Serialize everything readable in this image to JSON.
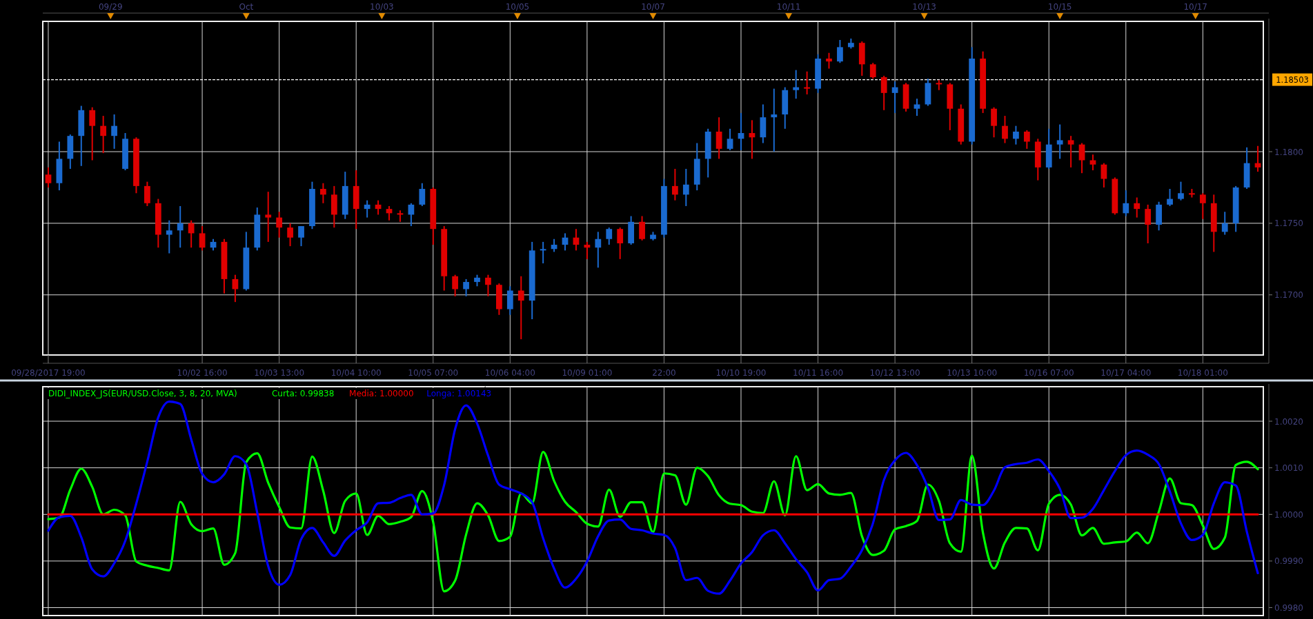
{
  "chart_data": [
    {
      "type": "candlestick",
      "categories": [
        "09/28/2017 19:00",
        null,
        null,
        null,
        null,
        null,
        null,
        null,
        null,
        null,
        null,
        null,
        null,
        null,
        "10/02 16:00",
        null,
        null,
        null,
        null,
        null,
        null,
        "10/03 13:00",
        null,
        null,
        null,
        null,
        null,
        null,
        "10/04 10:00",
        null,
        null,
        null,
        null,
        null,
        null,
        "10/05 07:00",
        null,
        null,
        null,
        null,
        null,
        null,
        "10/06 04:00",
        null,
        null,
        null,
        null,
        null,
        null,
        "10/09 01:00",
        null,
        null,
        null,
        null,
        null,
        null,
        "22:00",
        null,
        null,
        null,
        null,
        null,
        null,
        "10/10 19:00",
        null,
        null,
        null,
        null,
        null,
        null,
        "10/11 16:00",
        null,
        null,
        null,
        null,
        null,
        null,
        "10/12 13:00",
        null,
        null,
        null,
        null,
        null,
        null,
        "10/13 10:00",
        null,
        null,
        null,
        null,
        null,
        null,
        "10/16 07:00",
        null,
        null,
        null,
        null,
        null,
        null,
        "10/17 04:00",
        null,
        null,
        null,
        null,
        null,
        null,
        "10/18 01:00",
        null,
        null,
        null,
        null,
        null
      ],
      "ohlc": [
        [
          1.1784,
          1.1789,
          1.1775,
          1.1778
        ],
        [
          1.1778,
          1.1807,
          1.1773,
          1.1795
        ],
        [
          1.1795,
          1.1812,
          1.1788,
          1.1811
        ],
        [
          1.1811,
          1.1832,
          1.179,
          1.1829
        ],
        [
          1.1829,
          1.1831,
          1.1794,
          1.1818
        ],
        [
          1.1818,
          1.1825,
          1.1799,
          1.1811
        ],
        [
          1.1811,
          1.1826,
          1.1802,
          1.1818
        ],
        [
          1.1788,
          1.1813,
          1.1787,
          1.1809
        ],
        [
          1.1809,
          1.181,
          1.1771,
          1.1776
        ],
        [
          1.1776,
          1.1779,
          1.1762,
          1.1764
        ],
        [
          1.1764,
          1.1767,
          1.1733,
          1.1742
        ],
        [
          1.1742,
          1.1752,
          1.1729,
          1.1745
        ],
        [
          1.1745,
          1.1762,
          1.1733,
          1.175
        ],
        [
          1.175,
          1.1752,
          1.1733,
          1.1743
        ],
        [
          1.1743,
          1.1748,
          1.1731,
          1.1733
        ],
        [
          1.1733,
          1.1739,
          1.1731,
          1.1737
        ],
        [
          1.1737,
          1.1739,
          1.1701,
          1.1711
        ],
        [
          1.1711,
          1.1714,
          1.1695,
          1.1704
        ],
        [
          1.1704,
          1.1744,
          1.1703,
          1.1733
        ],
        [
          1.1733,
          1.1761,
          1.1731,
          1.1756
        ],
        [
          1.1756,
          1.1772,
          1.1737,
          1.1754
        ],
        [
          1.1754,
          1.1758,
          1.174,
          1.1747
        ],
        [
          1.1747,
          1.175,
          1.1734,
          1.174
        ],
        [
          1.174,
          1.1748,
          1.1734,
          1.1748
        ],
        [
          1.1748,
          1.1779,
          1.1746,
          1.1774
        ],
        [
          1.1774,
          1.1778,
          1.1764,
          1.177
        ],
        [
          1.177,
          1.1776,
          1.1747,
          1.1756
        ],
        [
          1.1756,
          1.1786,
          1.1753,
          1.1776
        ],
        [
          1.1776,
          1.1787,
          1.1746,
          1.176
        ],
        [
          1.176,
          1.1766,
          1.1754,
          1.1763
        ],
        [
          1.1763,
          1.1766,
          1.1756,
          1.176
        ],
        [
          1.176,
          1.1762,
          1.1752,
          1.1757
        ],
        [
          1.1757,
          1.1759,
          1.1751,
          1.1756
        ],
        [
          1.1756,
          1.1764,
          1.1748,
          1.1763
        ],
        [
          1.1763,
          1.1778,
          1.1762,
          1.1774
        ],
        [
          1.1774,
          1.1775,
          1.1735,
          1.1746
        ],
        [
          1.1746,
          1.1748,
          1.1703,
          1.1713
        ],
        [
          1.1713,
          1.1714,
          1.1699,
          1.1704
        ],
        [
          1.1704,
          1.1711,
          1.1699,
          1.1709
        ],
        [
          1.1709,
          1.1714,
          1.1706,
          1.1712
        ],
        [
          1.1712,
          1.1714,
          1.1699,
          1.1707
        ],
        [
          1.1707,
          1.1708,
          1.1686,
          1.169
        ],
        [
          1.169,
          1.1706,
          1.1686,
          1.1703
        ],
        [
          1.1703,
          1.1713,
          1.1669,
          1.1696
        ],
        [
          1.1696,
          1.1737,
          1.1683,
          1.1731
        ],
        [
          1.1731,
          1.1737,
          1.1722,
          1.1732
        ],
        [
          1.1732,
          1.1739,
          1.173,
          1.1735
        ],
        [
          1.1735,
          1.1743,
          1.1731,
          1.174
        ],
        [
          1.174,
          1.1746,
          1.1731,
          1.1735
        ],
        [
          1.1735,
          1.1737,
          1.1725,
          1.1733
        ],
        [
          1.1733,
          1.1744,
          1.1719,
          1.1739
        ],
        [
          1.1739,
          1.1747,
          1.1735,
          1.1746
        ],
        [
          1.1746,
          1.1747,
          1.1725,
          1.1736
        ],
        [
          1.1736,
          1.1755,
          1.1735,
          1.1751
        ],
        [
          1.1751,
          1.1755,
          1.1738,
          1.1739
        ],
        [
          1.1739,
          1.1744,
          1.1738,
          1.1742
        ],
        [
          1.1742,
          1.1781,
          1.174,
          1.1776
        ],
        [
          1.1776,
          1.1788,
          1.1766,
          1.177
        ],
        [
          1.177,
          1.1788,
          1.1762,
          1.1777
        ],
        [
          1.1777,
          1.1806,
          1.1773,
          1.1795
        ],
        [
          1.1795,
          1.1816,
          1.1782,
          1.1814
        ],
        [
          1.1814,
          1.1824,
          1.1795,
          1.1802
        ],
        [
          1.1802,
          1.1816,
          1.1801,
          1.1809
        ],
        [
          1.1809,
          1.1827,
          1.1801,
          1.1813
        ],
        [
          1.1813,
          1.1822,
          1.1795,
          1.181
        ],
        [
          1.181,
          1.1833,
          1.1806,
          1.1824
        ],
        [
          1.1824,
          1.1844,
          1.18,
          1.1826
        ],
        [
          1.1826,
          1.1845,
          1.1816,
          1.1843
        ],
        [
          1.1843,
          1.1857,
          1.1837,
          1.1845
        ],
        [
          1.1845,
          1.1856,
          1.184,
          1.1844
        ],
        [
          1.1844,
          1.1868,
          1.1841,
          1.1865
        ],
        [
          1.1865,
          1.1869,
          1.1858,
          1.1863
        ],
        [
          1.1863,
          1.1878,
          1.1862,
          1.1873
        ],
        [
          1.1873,
          1.1879,
          1.1872,
          1.1876
        ],
        [
          1.1876,
          1.1877,
          1.1853,
          1.1861
        ],
        [
          1.1861,
          1.1862,
          1.1851,
          1.1852
        ],
        [
          1.1852,
          1.1853,
          1.1829,
          1.1841
        ],
        [
          1.1841,
          1.1849,
          1.1827,
          1.1845
        ],
        [
          1.1847,
          1.1848,
          1.1828,
          1.183
        ],
        [
          1.183,
          1.1837,
          1.1825,
          1.1833
        ],
        [
          1.1833,
          1.1851,
          1.1832,
          1.1848
        ],
        [
          1.1848,
          1.185,
          1.1843,
          1.1847
        ],
        [
          1.1847,
          1.1848,
          1.1815,
          1.183
        ],
        [
          1.183,
          1.1833,
          1.1805,
          1.1807
        ],
        [
          1.1807,
          1.1873,
          1.1805,
          1.1865
        ],
        [
          1.1865,
          1.187,
          1.1827,
          1.183
        ],
        [
          1.183,
          1.1831,
          1.181,
          1.1818
        ],
        [
          1.1818,
          1.1825,
          1.1806,
          1.1809
        ],
        [
          1.1809,
          1.1818,
          1.1805,
          1.1814
        ],
        [
          1.1814,
          1.1815,
          1.1802,
          1.1807
        ],
        [
          1.1807,
          1.1809,
          1.178,
          1.1789
        ],
        [
          1.1789,
          1.1816,
          1.1788,
          1.1805
        ],
        [
          1.1805,
          1.1819,
          1.1795,
          1.1808
        ],
        [
          1.1808,
          1.1811,
          1.1789,
          1.1805
        ],
        [
          1.1805,
          1.1806,
          1.1785,
          1.1794
        ],
        [
          1.1794,
          1.1798,
          1.1787,
          1.1791
        ],
        [
          1.1791,
          1.1792,
          1.1775,
          1.1781
        ],
        [
          1.1781,
          1.1782,
          1.1756,
          1.1757
        ],
        [
          1.1757,
          1.1773,
          1.1755,
          1.1764
        ],
        [
          1.1764,
          1.1768,
          1.1754,
          1.176
        ],
        [
          1.176,
          1.1763,
          1.1736,
          1.1749
        ],
        [
          1.1749,
          1.1765,
          1.1745,
          1.1763
        ],
        [
          1.1763,
          1.1774,
          1.1762,
          1.1767
        ],
        [
          1.1767,
          1.1779,
          1.1766,
          1.1771
        ],
        [
          1.1771,
          1.1774,
          1.1768,
          1.177
        ],
        [
          1.177,
          1.1771,
          1.1753,
          1.1764
        ],
        [
          1.1764,
          1.177,
          1.173,
          1.1744
        ],
        [
          1.1744,
          1.1758,
          1.1742,
          1.175
        ],
        [
          1.175,
          1.1776,
          1.1744,
          1.1775
        ],
        [
          1.1775,
          1.1803,
          1.1774,
          1.1792
        ],
        [
          1.1792,
          1.1804,
          1.1786,
          1.1789
        ]
      ],
      "colors": [
        "#e00000",
        "#1a6ad0",
        "#1a6ad0",
        "#1a6ad0",
        "#e00000",
        "#e00000",
        "#1a6ad0",
        "#1a6ad0",
        "#e00000",
        "#e00000",
        "#e00000",
        "#1a6ad0",
        "#1a6ad0",
        "#e00000",
        "#e00000",
        "#1a6ad0",
        "#e00000",
        "#e00000",
        "#1a6ad0",
        "#1a6ad0",
        "#e00000",
        "#e00000",
        "#e00000",
        "#1a6ad0",
        "#1a6ad0",
        "#e00000",
        "#e00000",
        "#1a6ad0",
        "#e00000",
        "#1a6ad0",
        "#e00000",
        "#e00000",
        "#e00000",
        "#1a6ad0",
        "#1a6ad0",
        "#e00000",
        "#e00000",
        "#e00000",
        "#1a6ad0",
        "#1a6ad0",
        "#e00000",
        "#e00000",
        "#1a6ad0",
        "#e00000",
        "#1a6ad0",
        "#1a6ad0",
        "#1a6ad0",
        "#1a6ad0",
        "#e00000",
        "#e00000",
        "#1a6ad0",
        "#1a6ad0",
        "#e00000",
        "#1a6ad0",
        "#e00000",
        "#1a6ad0",
        "#1a6ad0",
        "#e00000",
        "#1a6ad0",
        "#1a6ad0",
        "#1a6ad0",
        "#e00000",
        "#1a6ad0",
        "#1a6ad0",
        "#e00000",
        "#1a6ad0",
        "#1a6ad0",
        "#1a6ad0",
        "#1a6ad0",
        "#e00000",
        "#1a6ad0",
        "#e00000",
        "#1a6ad0",
        "#1a6ad0",
        "#e00000",
        "#e00000",
        "#e00000",
        "#1a6ad0",
        "#e00000",
        "#1a6ad0",
        "#1a6ad0",
        "#e00000",
        "#e00000",
        "#e00000",
        "#1a6ad0",
        "#e00000",
        "#e00000",
        "#e00000",
        "#1a6ad0",
        "#e00000",
        "#e00000",
        "#1a6ad0",
        "#1a6ad0",
        "#e00000",
        "#e00000",
        "#e00000",
        "#e00000",
        "#e00000",
        "#1a6ad0",
        "#e00000",
        "#e00000",
        "#1a6ad0",
        "#1a6ad0",
        "#1a6ad0",
        "#e00000",
        "#e00000",
        "#e00000",
        "#1a6ad0",
        "#1a6ad0",
        "#1a6ad0",
        "#e00000"
      ],
      "ylim": [
        1.1658,
        1.1891
      ],
      "yticks": [
        {
          "value": 1.17,
          "label": "1.1700"
        },
        {
          "value": 1.175,
          "label": "1.1750"
        },
        {
          "value": 1.18,
          "label": "1.1800"
        }
      ],
      "annotations": [
        "09/29",
        "Oct",
        "10/03",
        "10/05",
        "10/07",
        "10/11",
        "10/13",
        "10/15",
        "10/17"
      ],
      "ref_lines": [
        {
          "axis": "y",
          "value": 1.18503,
          "label": "1.18503",
          "color": "#ffffff",
          "line_style": "dashed"
        }
      ],
      "grid": true
    },
    {
      "type": "line",
      "title": "DIDI_INDEX_JS(EUR/USD.Close, 3, 8, 20, MVA)",
      "categories": [
        null,
        null,
        null,
        null,
        null,
        null,
        null,
        null,
        null,
        null,
        null,
        null,
        null,
        null,
        null,
        null,
        null,
        null,
        null,
        null,
        null,
        null,
        null,
        null,
        null,
        null,
        null,
        null,
        null,
        null,
        null,
        null,
        null,
        null,
        null,
        null,
        null,
        null,
        null,
        null,
        null,
        null,
        null,
        null,
        null,
        null,
        null,
        null,
        null,
        null,
        null,
        null,
        null,
        null,
        null,
        null,
        null,
        null,
        null,
        null,
        null,
        null,
        null,
        null,
        null,
        null,
        null,
        null,
        null,
        null,
        null,
        null,
        null,
        null,
        null,
        null,
        null,
        null,
        null,
        null,
        null,
        null,
        null,
        null,
        null,
        null,
        null,
        null,
        null,
        null,
        null,
        null,
        null,
        null,
        null,
        null,
        null,
        null,
        null,
        null,
        null,
        null,
        null,
        null,
        null,
        null,
        null,
        null,
        null,
        null,
        null
      ],
      "series": [
        {
          "name": "Curta: 0.99838",
          "color": "#00ff00",
          "values": [
            0.9999,
            0.99993,
            1.00053,
            1.00098,
            1.00059,
            1.0,
            1.0001,
            0.99998,
            0.99899,
            0.9989,
            0.99885,
            0.9988,
            1.00027,
            0.99979,
            0.99964,
            0.9997,
            0.99892,
            0.99917,
            1.00112,
            1.00131,
            1.00068,
            1.00016,
            0.99972,
            0.9997,
            1.00124,
            1.00051,
            0.9996,
            1.00029,
            1.00045,
            0.99956,
            0.99997,
            0.99979,
            0.99984,
            0.99994,
            1.0005,
            0.99984,
            0.99835,
            0.99858,
            0.99957,
            1.00024,
            0.99998,
            0.99943,
            0.99952,
            1.00045,
            1.00024,
            1.00134,
            1.00072,
            1.00027,
            1.00005,
            0.9998,
            0.99974,
            1.00053,
            0.99995,
            1.00026,
            1.00026,
            0.99962,
            1.00088,
            1.00084,
            1.00021,
            1.001,
            1.00082,
            1.00041,
            1.00023,
            1.0002,
            1.00006,
            1.00003,
            1.00071,
            0.99998,
            1.00125,
            1.00052,
            1.00065,
            1.00045,
            1.00042,
            1.00046,
            0.99953,
            0.99913,
            0.99922,
            0.99968,
            0.99975,
            0.99986,
            1.00064,
            1.00029,
            0.99938,
            0.9992,
            1.00126,
            0.99961,
            0.99884,
            0.9994,
            0.99971,
            0.9997,
            0.99923,
            1.00023,
            1.00042,
            1.00021,
            0.99955,
            0.99971,
            0.99937,
            0.9994,
            0.99942,
            0.99961,
            0.99938,
            1.00006,
            1.00077,
            1.00024,
            1.0002,
            0.99976,
            0.99926,
            0.9995,
            1.00106,
            1.00113,
            1.00097
          ]
        },
        {
          "name": "Media: 1.00000",
          "color": "#ff0000",
          "values": [
            1,
            1,
            1,
            1,
            1,
            1,
            1,
            1,
            1,
            1,
            1,
            1,
            1,
            1,
            1,
            1,
            1,
            1,
            1,
            1,
            1,
            1,
            1,
            1,
            1,
            1,
            1,
            1,
            1,
            1,
            1,
            1,
            1,
            1,
            1,
            1,
            1,
            1,
            1,
            1,
            1,
            1,
            1,
            1,
            1,
            1,
            1,
            1,
            1,
            1,
            1,
            1,
            1,
            1,
            1,
            1,
            1,
            1,
            1,
            1,
            1,
            1,
            1,
            1,
            1,
            1,
            1,
            1,
            1,
            1,
            1,
            1,
            1,
            1,
            1,
            1,
            1,
            1,
            1,
            1,
            1,
            1,
            1,
            1,
            1,
            1,
            1,
            1,
            1,
            1,
            1,
            1,
            1,
            1,
            1,
            1,
            1,
            1,
            1,
            1,
            1,
            1,
            1,
            1,
            1,
            1,
            1,
            1,
            1,
            1,
            1
          ]
        },
        {
          "name": "Longa: 1.00143",
          "color": "#0000ff",
          "values": [
            0.99965,
            0.99994,
            0.99997,
            0.99951,
            0.99882,
            0.99867,
            0.99895,
            0.99943,
            1.00023,
            1.00113,
            1.00208,
            1.00242,
            1.00237,
            1.00161,
            1.00087,
            1.00069,
            1.00086,
            1.00125,
            1.00108,
            1.00004,
            0.99889,
            0.99849,
            0.9987,
            0.99947,
            0.99971,
            0.9994,
            0.99911,
            0.99944,
            0.99966,
            0.99983,
            1.00024,
            1.00025,
            1.00035,
            1.00042,
            1.0,
            1.00002,
            1.00063,
            1.00183,
            1.00234,
            1.00195,
            1.00126,
            1.00064,
            1.00054,
            1.00045,
            1.00026,
            0.99949,
            0.99884,
            0.99843,
            0.99862,
            0.99899,
            0.99953,
            0.99987,
            0.99989,
            0.99969,
            0.99966,
            0.99959,
            0.99956,
            0.99928,
            0.99859,
            0.99864,
            0.99836,
            0.9983,
            0.99858,
            0.99895,
            0.99919,
            0.99955,
            0.99966,
            0.99938,
            0.99904,
            0.99876,
            0.99837,
            0.99859,
            0.99862,
            0.99888,
            0.99923,
            0.99981,
            1.00074,
            1.00116,
            1.00132,
            1.00106,
            1.00057,
            0.99988,
            0.99989,
            1.00031,
            1.00021,
            1.0002,
            1.00051,
            1.00101,
            1.00108,
            1.00111,
            1.00118,
            1.00093,
            1.00055,
            0.99992,
            0.99993,
            1.00012,
            1.00052,
            1.00093,
            1.00127,
            1.00137,
            1.00128,
            1.00108,
            1.00049,
            0.99981,
            0.99945,
            0.99956,
            1.00024,
            1.00069,
            1.00062,
            0.99963,
            0.99874
          ]
        }
      ],
      "ylim": [
        0.99783,
        1.00274
      ],
      "yticks": [
        {
          "value": 0.998,
          "label": "0.9980"
        },
        {
          "value": 0.999,
          "label": "0.9990"
        },
        {
          "value": 1,
          "label": "1.0000"
        },
        {
          "value": 1.001,
          "label": "1.0010"
        },
        {
          "value": 1.002,
          "label": "1.0020"
        }
      ],
      "grid": true,
      "tick_labels": "y"
    }
  ]
}
